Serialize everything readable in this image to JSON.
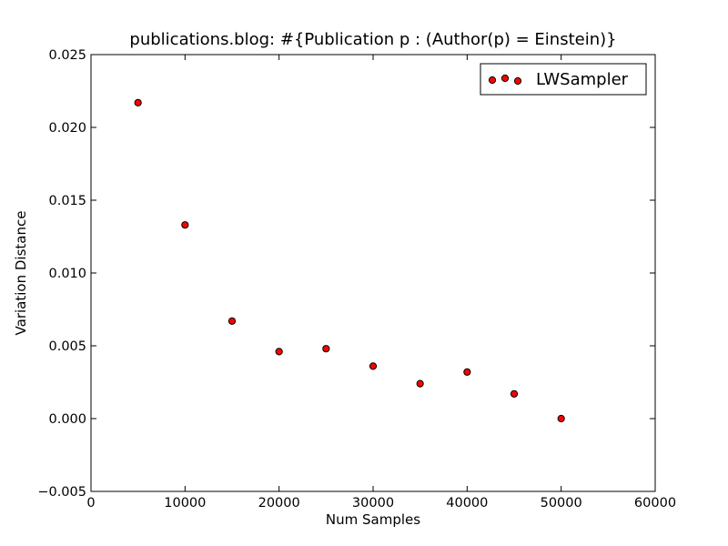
{
  "chart_data": {
    "type": "scatter",
    "title": "publications.blog: #{Publication p : (Author(p) = Einstein)}",
    "xlabel": "Num Samples",
    "ylabel": "Variation Distance",
    "xlim": [
      0,
      60000
    ],
    "ylim": [
      -0.005,
      0.025
    ],
    "x_ticks": [
      0,
      10000,
      20000,
      30000,
      40000,
      50000,
      60000
    ],
    "x_tick_labels": [
      "0",
      "10000",
      "20000",
      "30000",
      "40000",
      "50000",
      "60000"
    ],
    "y_ticks": [
      -0.005,
      0.0,
      0.005,
      0.01,
      0.015,
      0.02,
      0.025
    ],
    "y_tick_labels": [
      "−0.005",
      "0.000",
      "0.005",
      "0.010",
      "0.015",
      "0.020",
      "0.025"
    ],
    "grid": false,
    "legend_position": "top-right",
    "series": [
      {
        "name": "LWSampler",
        "color": "#ff0000",
        "edge_color": "#000000",
        "x": [
          5000,
          10000,
          15000,
          20000,
          25000,
          30000,
          35000,
          40000,
          45000,
          50000
        ],
        "y": [
          0.0217,
          0.0133,
          0.0067,
          0.0046,
          0.0048,
          0.0036,
          0.0024,
          0.0032,
          0.0017,
          0.0
        ]
      }
    ]
  }
}
